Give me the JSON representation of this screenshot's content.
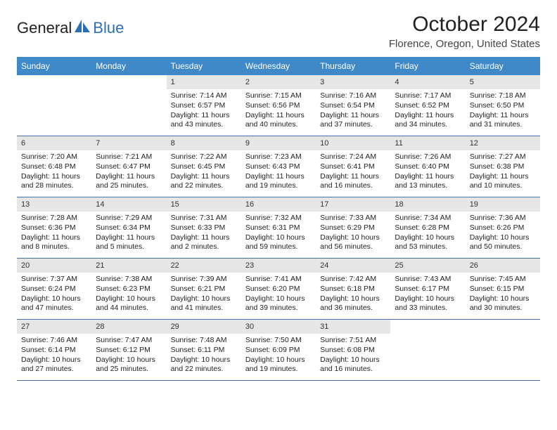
{
  "brand": {
    "general": "General",
    "blue": "Blue",
    "accent_color": "#2b6fb5"
  },
  "header": {
    "title": "October 2024",
    "subtitle": "Florence, Oregon, United States"
  },
  "calendar": {
    "header_bg": "#4089c9",
    "header_fg": "#ffffff",
    "row_border": "#4472a8",
    "daynum_bg": "#e6e6e6",
    "daylabels": [
      "Sunday",
      "Monday",
      "Tuesday",
      "Wednesday",
      "Thursday",
      "Friday",
      "Saturday"
    ],
    "weeks": [
      [
        {
          "empty": true
        },
        {
          "empty": true
        },
        {
          "day": "1",
          "sunrise": "Sunrise: 7:14 AM",
          "sunset": "Sunset: 6:57 PM",
          "daylight": "Daylight: 11 hours and 43 minutes."
        },
        {
          "day": "2",
          "sunrise": "Sunrise: 7:15 AM",
          "sunset": "Sunset: 6:56 PM",
          "daylight": "Daylight: 11 hours and 40 minutes."
        },
        {
          "day": "3",
          "sunrise": "Sunrise: 7:16 AM",
          "sunset": "Sunset: 6:54 PM",
          "daylight": "Daylight: 11 hours and 37 minutes."
        },
        {
          "day": "4",
          "sunrise": "Sunrise: 7:17 AM",
          "sunset": "Sunset: 6:52 PM",
          "daylight": "Daylight: 11 hours and 34 minutes."
        },
        {
          "day": "5",
          "sunrise": "Sunrise: 7:18 AM",
          "sunset": "Sunset: 6:50 PM",
          "daylight": "Daylight: 11 hours and 31 minutes."
        }
      ],
      [
        {
          "day": "6",
          "sunrise": "Sunrise: 7:20 AM",
          "sunset": "Sunset: 6:48 PM",
          "daylight": "Daylight: 11 hours and 28 minutes."
        },
        {
          "day": "7",
          "sunrise": "Sunrise: 7:21 AM",
          "sunset": "Sunset: 6:47 PM",
          "daylight": "Daylight: 11 hours and 25 minutes."
        },
        {
          "day": "8",
          "sunrise": "Sunrise: 7:22 AM",
          "sunset": "Sunset: 6:45 PM",
          "daylight": "Daylight: 11 hours and 22 minutes."
        },
        {
          "day": "9",
          "sunrise": "Sunrise: 7:23 AM",
          "sunset": "Sunset: 6:43 PM",
          "daylight": "Daylight: 11 hours and 19 minutes."
        },
        {
          "day": "10",
          "sunrise": "Sunrise: 7:24 AM",
          "sunset": "Sunset: 6:41 PM",
          "daylight": "Daylight: 11 hours and 16 minutes."
        },
        {
          "day": "11",
          "sunrise": "Sunrise: 7:26 AM",
          "sunset": "Sunset: 6:40 PM",
          "daylight": "Daylight: 11 hours and 13 minutes."
        },
        {
          "day": "12",
          "sunrise": "Sunrise: 7:27 AM",
          "sunset": "Sunset: 6:38 PM",
          "daylight": "Daylight: 11 hours and 10 minutes."
        }
      ],
      [
        {
          "day": "13",
          "sunrise": "Sunrise: 7:28 AM",
          "sunset": "Sunset: 6:36 PM",
          "daylight": "Daylight: 11 hours and 8 minutes."
        },
        {
          "day": "14",
          "sunrise": "Sunrise: 7:29 AM",
          "sunset": "Sunset: 6:34 PM",
          "daylight": "Daylight: 11 hours and 5 minutes."
        },
        {
          "day": "15",
          "sunrise": "Sunrise: 7:31 AM",
          "sunset": "Sunset: 6:33 PM",
          "daylight": "Daylight: 11 hours and 2 minutes."
        },
        {
          "day": "16",
          "sunrise": "Sunrise: 7:32 AM",
          "sunset": "Sunset: 6:31 PM",
          "daylight": "Daylight: 10 hours and 59 minutes."
        },
        {
          "day": "17",
          "sunrise": "Sunrise: 7:33 AM",
          "sunset": "Sunset: 6:29 PM",
          "daylight": "Daylight: 10 hours and 56 minutes."
        },
        {
          "day": "18",
          "sunrise": "Sunrise: 7:34 AM",
          "sunset": "Sunset: 6:28 PM",
          "daylight": "Daylight: 10 hours and 53 minutes."
        },
        {
          "day": "19",
          "sunrise": "Sunrise: 7:36 AM",
          "sunset": "Sunset: 6:26 PM",
          "daylight": "Daylight: 10 hours and 50 minutes."
        }
      ],
      [
        {
          "day": "20",
          "sunrise": "Sunrise: 7:37 AM",
          "sunset": "Sunset: 6:24 PM",
          "daylight": "Daylight: 10 hours and 47 minutes."
        },
        {
          "day": "21",
          "sunrise": "Sunrise: 7:38 AM",
          "sunset": "Sunset: 6:23 PM",
          "daylight": "Daylight: 10 hours and 44 minutes."
        },
        {
          "day": "22",
          "sunrise": "Sunrise: 7:39 AM",
          "sunset": "Sunset: 6:21 PM",
          "daylight": "Daylight: 10 hours and 41 minutes."
        },
        {
          "day": "23",
          "sunrise": "Sunrise: 7:41 AM",
          "sunset": "Sunset: 6:20 PM",
          "daylight": "Daylight: 10 hours and 39 minutes."
        },
        {
          "day": "24",
          "sunrise": "Sunrise: 7:42 AM",
          "sunset": "Sunset: 6:18 PM",
          "daylight": "Daylight: 10 hours and 36 minutes."
        },
        {
          "day": "25",
          "sunrise": "Sunrise: 7:43 AM",
          "sunset": "Sunset: 6:17 PM",
          "daylight": "Daylight: 10 hours and 33 minutes."
        },
        {
          "day": "26",
          "sunrise": "Sunrise: 7:45 AM",
          "sunset": "Sunset: 6:15 PM",
          "daylight": "Daylight: 10 hours and 30 minutes."
        }
      ],
      [
        {
          "day": "27",
          "sunrise": "Sunrise: 7:46 AM",
          "sunset": "Sunset: 6:14 PM",
          "daylight": "Daylight: 10 hours and 27 minutes."
        },
        {
          "day": "28",
          "sunrise": "Sunrise: 7:47 AM",
          "sunset": "Sunset: 6:12 PM",
          "daylight": "Daylight: 10 hours and 25 minutes."
        },
        {
          "day": "29",
          "sunrise": "Sunrise: 7:48 AM",
          "sunset": "Sunset: 6:11 PM",
          "daylight": "Daylight: 10 hours and 22 minutes."
        },
        {
          "day": "30",
          "sunrise": "Sunrise: 7:50 AM",
          "sunset": "Sunset: 6:09 PM",
          "daylight": "Daylight: 10 hours and 19 minutes."
        },
        {
          "day": "31",
          "sunrise": "Sunrise: 7:51 AM",
          "sunset": "Sunset: 6:08 PM",
          "daylight": "Daylight: 10 hours and 16 minutes."
        },
        {
          "empty": true
        },
        {
          "empty": true
        }
      ]
    ]
  }
}
